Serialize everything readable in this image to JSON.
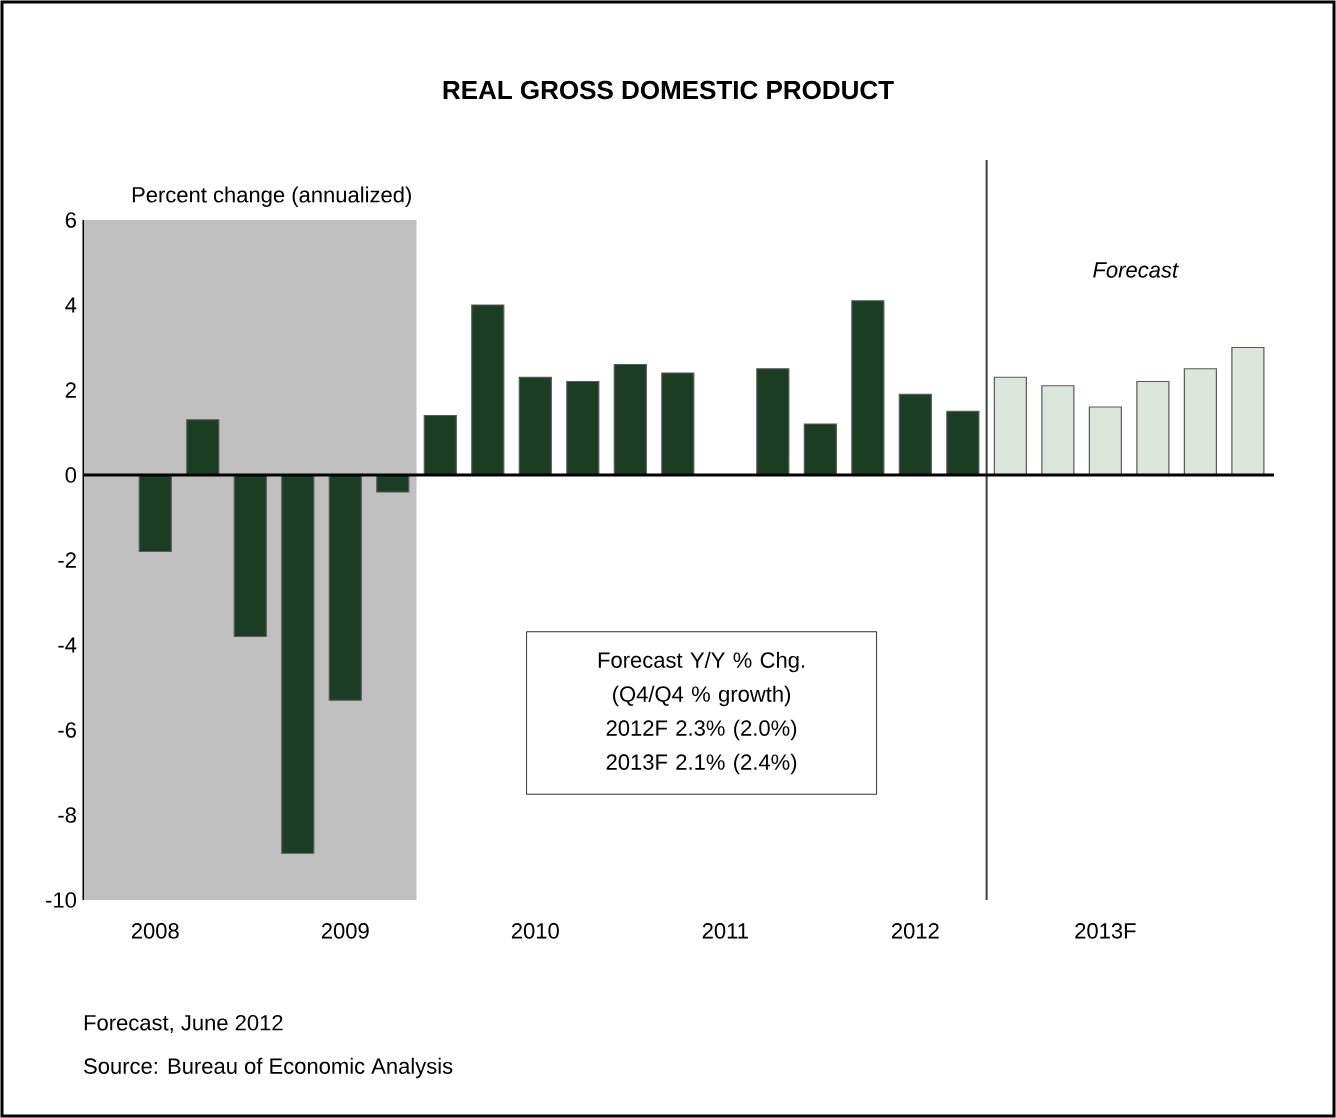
{
  "chart_data": {
    "type": "bar",
    "title": "REAL GROSS DOMESTIC PRODUCT",
    "ylabel": "Percent change (annualized)",
    "categories": [
      "2008",
      null,
      null,
      null,
      "2009",
      null,
      null,
      null,
      "2010",
      null,
      null,
      null,
      "2011",
      null,
      null,
      null,
      "2012",
      null,
      null,
      null,
      "2013F",
      null,
      null,
      null
    ],
    "values": [
      -1.8,
      1.3,
      -3.8,
      -8.9,
      -5.3,
      -0.4,
      1.4,
      4.0,
      2.3,
      2.2,
      2.6,
      2.4,
      null,
      2.5,
      1.2,
      4.1,
      1.9,
      1.5,
      2.3,
      2.1,
      1.6,
      2.2,
      2.5,
      3.0
    ],
    "colors": [
      "#1a3d24",
      "#1a3d24",
      "#1a3d24",
      "#1a3d24",
      "#1a3d24",
      "#1a3d24",
      "#1a3d24",
      "#1a3d24",
      "#1a3d24",
      "#1a3d24",
      "#1a3d24",
      "#1a3d24",
      "#1a3d24",
      "#1a3d24",
      "#1a3d24",
      "#1a3d24",
      "#1a3d24",
      "#1a3d24",
      "#dce6dc",
      "#dce6dc",
      "#dce6dc",
      "#dce6dc",
      "#dce6dc",
      "#dce6dc"
    ],
    "ylim": [
      -10,
      6
    ],
    "yticks": [
      -10,
      -8,
      -6,
      -4,
      -2,
      0,
      2,
      4,
      6
    ],
    "annotations": [
      "Forecast",
      "Forecast Y/Y % Chg.",
      "(Q4/Q4 % growth)",
      "2012F 2.3% (2.0%)",
      "2013F 2.1% (2.4%)",
      "Forecast, June 2012",
      "Source: Bureau of Economic Analysis"
    ]
  }
}
